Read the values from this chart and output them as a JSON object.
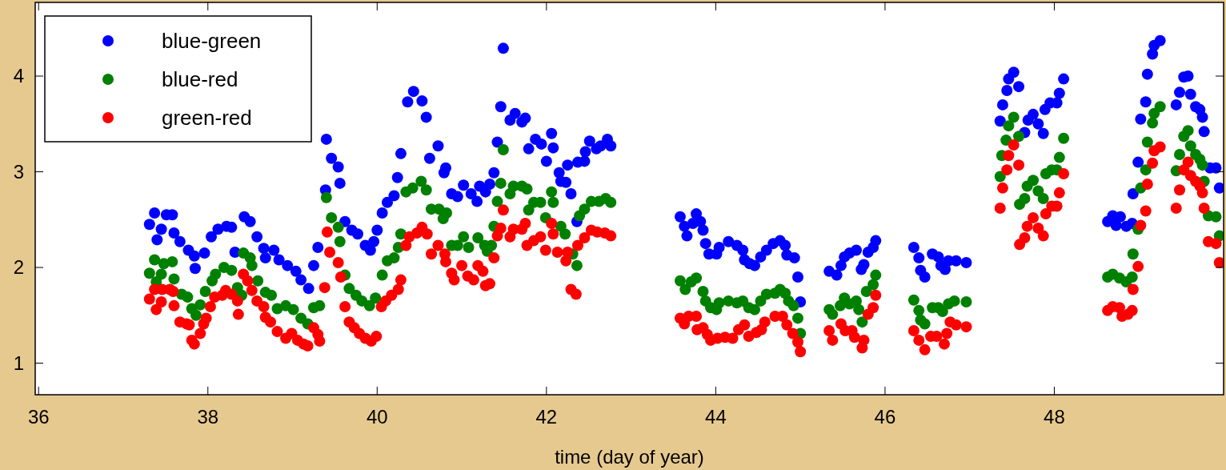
{
  "chart_data": {
    "type": "scatter",
    "xlabel": "time (day of year)",
    "xlim": [
      35.96,
      50
    ],
    "ylim": [
      0.67,
      4.77
    ],
    "xticks": [
      36,
      38,
      40,
      42,
      44,
      46,
      48
    ],
    "yticks": [
      1,
      2,
      3,
      4
    ],
    "legend": "top left",
    "marker": "circle",
    "series": [
      {
        "name": "blue-green",
        "color": "#0000ff",
        "x": [
          37.31,
          37.37,
          37.4,
          37.45,
          37.51,
          37.58,
          37.6,
          37.67,
          37.77,
          37.84,
          37.85,
          37.96,
          38.04,
          38.12,
          38.22,
          38.28,
          38.32,
          38.43,
          38.5,
          38.58,
          38.66,
          38.68,
          38.78,
          38.84,
          38.94,
          39.04,
          39.1,
          39.19,
          39.25,
          39.3,
          39.39,
          39.4,
          39.46,
          39.54,
          39.56,
          39.62,
          39.7,
          39.77,
          39.86,
          39.92,
          39.96,
          40.0,
          40.06,
          40.12,
          40.2,
          40.24,
          40.28,
          40.36,
          40.43,
          40.53,
          40.58,
          40.62,
          40.72,
          40.79,
          40.81,
          40.88,
          40.95,
          41.02,
          41.11,
          41.18,
          41.21,
          41.28,
          41.33,
          41.38,
          41.42,
          41.46,
          41.49,
          41.57,
          41.63,
          41.71,
          41.75,
          41.79,
          41.87,
          41.94,
          42.0,
          42.06,
          42.08,
          42.15,
          42.17,
          42.23,
          42.25,
          42.29,
          42.36,
          42.37,
          42.45,
          42.46,
          42.51,
          42.59,
          42.64,
          42.72,
          42.76,
          43.58,
          43.63,
          43.66,
          43.73,
          43.77,
          43.82,
          43.85,
          43.88,
          43.92,
          44.01,
          44.04,
          44.15,
          44.25,
          44.32,
          44.34,
          44.4,
          44.46,
          44.53,
          44.6,
          44.68,
          44.76,
          44.82,
          44.84,
          44.93,
          44.97,
          45.0,
          45.34,
          45.43,
          45.48,
          45.52,
          45.58,
          45.66,
          45.72,
          45.75,
          45.8,
          45.86,
          45.89,
          46.34,
          46.4,
          46.42,
          46.47,
          46.56,
          46.63,
          46.66,
          46.71,
          46.75,
          46.84,
          46.96,
          47.36,
          47.39,
          47.44,
          47.46,
          47.52,
          47.58,
          47.65,
          47.69,
          47.75,
          47.81,
          47.87,
          47.89,
          47.95,
          48.03,
          48.06,
          48.11,
          48.63,
          48.69,
          48.73,
          48.78,
          48.85,
          48.92,
          48.93,
          48.99,
          49.02,
          49.08,
          49.1,
          49.16,
          49.18,
          49.25,
          49.44,
          49.48,
          49.53,
          49.58,
          49.61,
          49.67,
          49.72,
          49.75,
          49.77,
          49.84,
          49.91,
          49.95
        ],
        "values": [
          2.45,
          2.57,
          2.29,
          2.4,
          2.55,
          2.55,
          2.36,
          2.27,
          2.18,
          2.12,
          1.99,
          2.15,
          2.32,
          2.4,
          2.43,
          2.42,
          2.16,
          2.53,
          2.48,
          2.32,
          2.2,
          2.1,
          2.18,
          2.08,
          2.02,
          1.96,
          1.87,
          1.78,
          2.02,
          2.21,
          2.81,
          3.34,
          3.14,
          3.05,
          2.88,
          2.48,
          2.39,
          2.35,
          2.23,
          2.18,
          2.27,
          2.39,
          2.57,
          2.68,
          2.75,
          2.94,
          3.19,
          3.73,
          3.84,
          3.74,
          3.57,
          3.14,
          3.27,
          2.99,
          3.04,
          2.77,
          2.74,
          2.86,
          2.77,
          2.69,
          2.85,
          2.79,
          2.87,
          2.99,
          3.31,
          3.68,
          4.29,
          3.54,
          3.61,
          3.52,
          3.56,
          3.24,
          3.34,
          3.29,
          3.11,
          3.4,
          3.25,
          2.99,
          2.9,
          2.89,
          3.07,
          2.77,
          2.48,
          3.1,
          3.11,
          3.21,
          3.32,
          3.24,
          3.27,
          3.34,
          3.27,
          2.53,
          2.43,
          2.33,
          2.46,
          2.56,
          2.48,
          2.39,
          2.25,
          2.14,
          2.14,
          2.21,
          2.27,
          2.23,
          2.18,
          2.08,
          2.04,
          2.02,
          2.11,
          2.18,
          2.25,
          2.28,
          2.23,
          2.13,
          2.1,
          1.9,
          1.64,
          1.96,
          1.92,
          2.02,
          2.11,
          2.15,
          2.18,
          1.98,
          2.03,
          2.16,
          2.21,
          2.28,
          2.21,
          2.1,
          1.97,
          1.9,
          2.14,
          2.11,
          2.02,
          1.98,
          2.07,
          2.07,
          2.05,
          3.53,
          3.7,
          3.85,
          3.97,
          4.04,
          3.89,
          3.41,
          3.54,
          3.6,
          3.5,
          3.4,
          3.65,
          3.72,
          3.72,
          3.82,
          3.97,
          2.48,
          2.54,
          2.44,
          2.53,
          2.43,
          2.46,
          2.77,
          3.1,
          3.55,
          3.73,
          4.02,
          4.23,
          4.32,
          4.37,
          3.7,
          3.83,
          3.99,
          4.0,
          3.81,
          3.68,
          3.65,
          3.57,
          3.42,
          3.04,
          3.04,
          2.83
        ]
      },
      {
        "name": "blue-red",
        "color": "#008000",
        "x": [
          37.31,
          37.37,
          37.39,
          37.45,
          37.48,
          37.58,
          37.6,
          37.69,
          37.76,
          37.81,
          37.86,
          37.91,
          37.97,
          38.05,
          38.09,
          38.19,
          38.28,
          38.35,
          38.4,
          38.42,
          38.5,
          38.52,
          38.59,
          38.68,
          38.75,
          38.82,
          38.92,
          39.01,
          39.1,
          39.18,
          39.25,
          39.32,
          39.4,
          39.46,
          39.54,
          39.56,
          39.62,
          39.67,
          39.75,
          39.82,
          39.91,
          39.98,
          40.06,
          40.12,
          40.2,
          40.25,
          40.28,
          40.34,
          40.42,
          40.52,
          40.58,
          40.64,
          40.73,
          40.78,
          40.82,
          40.88,
          40.95,
          41.02,
          41.08,
          41.19,
          41.27,
          41.3,
          41.35,
          41.38,
          41.42,
          41.46,
          41.49,
          41.57,
          41.61,
          41.71,
          41.77,
          41.79,
          41.85,
          41.93,
          41.99,
          42.06,
          42.08,
          42.17,
          42.22,
          42.31,
          42.36,
          42.39,
          42.45,
          42.53,
          42.62,
          42.7,
          42.76,
          43.58,
          43.64,
          43.71,
          43.77,
          43.85,
          43.88,
          43.94,
          44.01,
          44.04,
          44.15,
          44.25,
          44.32,
          44.39,
          44.46,
          44.53,
          44.6,
          44.7,
          44.76,
          44.82,
          44.86,
          44.92,
          44.97,
          45.0,
          45.34,
          45.38,
          45.47,
          45.52,
          45.58,
          45.66,
          45.69,
          45.73,
          45.78,
          45.86,
          45.89,
          46.34,
          46.4,
          46.42,
          46.47,
          46.56,
          46.63,
          46.68,
          46.75,
          46.82,
          46.96,
          47.36,
          47.38,
          47.43,
          47.46,
          47.52,
          47.58,
          47.59,
          47.65,
          47.68,
          47.75,
          47.81,
          47.87,
          47.9,
          47.97,
          48.03,
          48.06,
          48.11,
          48.63,
          48.69,
          48.77,
          48.85,
          48.92,
          48.93,
          48.99,
          49.02,
          49.08,
          49.1,
          49.16,
          49.18,
          49.25,
          49.44,
          49.48,
          49.53,
          49.58,
          49.61,
          49.67,
          49.72,
          49.75,
          49.77,
          49.82,
          49.91,
          49.95
        ],
        "values": [
          1.94,
          2.08,
          1.85,
          1.93,
          2.04,
          2.06,
          1.88,
          1.72,
          1.69,
          1.57,
          1.5,
          1.61,
          1.75,
          1.86,
          1.93,
          2.0,
          1.97,
          1.79,
          1.71,
          2.15,
          2.1,
          2.02,
          1.86,
          1.74,
          1.71,
          1.57,
          1.6,
          1.56,
          1.47,
          1.41,
          1.58,
          1.6,
          2.73,
          2.52,
          2.42,
          2.27,
          1.92,
          1.78,
          1.71,
          1.65,
          1.6,
          1.68,
          1.92,
          2.07,
          2.1,
          2.21,
          2.35,
          2.79,
          2.83,
          2.9,
          2.81,
          2.61,
          2.61,
          2.51,
          2.57,
          2.23,
          2.23,
          2.32,
          2.21,
          2.31,
          2.23,
          2.17,
          2.23,
          2.43,
          2.69,
          2.88,
          3.23,
          2.77,
          2.85,
          2.85,
          2.82,
          2.6,
          2.68,
          2.68,
          2.52,
          2.79,
          2.68,
          2.43,
          2.35,
          2.14,
          2.02,
          2.54,
          2.61,
          2.69,
          2.69,
          2.72,
          2.68,
          1.86,
          1.77,
          1.85,
          1.89,
          1.75,
          1.65,
          1.58,
          1.56,
          1.63,
          1.65,
          1.63,
          1.65,
          1.58,
          1.56,
          1.65,
          1.72,
          1.73,
          1.77,
          1.73,
          1.65,
          1.6,
          1.47,
          1.31,
          1.56,
          1.51,
          1.6,
          1.68,
          1.62,
          1.65,
          1.56,
          1.43,
          1.75,
          1.82,
          1.92,
          1.66,
          1.55,
          1.45,
          1.41,
          1.58,
          1.58,
          1.54,
          1.62,
          1.65,
          1.64,
          2.95,
          3.17,
          3.33,
          3.48,
          3.57,
          3.37,
          2.66,
          2.72,
          2.85,
          2.91,
          2.8,
          2.72,
          2.98,
          3.02,
          3.02,
          3.15,
          3.35,
          1.9,
          1.93,
          1.89,
          1.85,
          1.9,
          2.14,
          2.4,
          2.83,
          3.02,
          3.31,
          3.51,
          3.61,
          3.68,
          3.01,
          3.18,
          3.37,
          3.43,
          3.27,
          3.18,
          3.13,
          3.07,
          2.9,
          2.54,
          2.53,
          2.33
        ]
      },
      {
        "name": "green-red",
        "color": "#ff0000",
        "x": [
          37.31,
          37.37,
          37.39,
          37.45,
          37.46,
          37.55,
          37.59,
          37.6,
          37.67,
          37.75,
          37.78,
          37.81,
          37.84,
          37.91,
          37.95,
          37.98,
          38.03,
          38.08,
          38.17,
          38.21,
          38.28,
          38.35,
          38.36,
          38.42,
          38.47,
          38.52,
          38.58,
          38.66,
          38.68,
          38.74,
          38.82,
          38.92,
          38.99,
          39.06,
          39.13,
          39.18,
          39.25,
          39.3,
          39.32,
          39.38,
          39.41,
          39.44,
          39.54,
          39.57,
          39.62,
          39.67,
          39.73,
          39.79,
          39.86,
          39.93,
          39.99,
          40.05,
          40.1,
          40.17,
          40.25,
          40.28,
          40.34,
          40.38,
          40.47,
          40.53,
          40.59,
          40.64,
          40.72,
          40.8,
          40.81,
          40.88,
          40.91,
          41.0,
          41.07,
          41.14,
          41.19,
          41.25,
          41.28,
          41.33,
          41.38,
          41.42,
          41.46,
          41.49,
          41.57,
          41.61,
          41.71,
          41.75,
          41.77,
          41.85,
          41.93,
          41.99,
          42.06,
          42.08,
          42.13,
          42.23,
          42.25,
          42.29,
          42.35,
          42.37,
          42.45,
          42.53,
          42.6,
          42.69,
          42.76,
          43.58,
          43.63,
          43.68,
          43.77,
          43.78,
          43.85,
          43.9,
          43.94,
          44.02,
          44.11,
          44.2,
          44.27,
          44.34,
          44.39,
          44.48,
          44.54,
          44.58,
          44.7,
          44.79,
          44.84,
          44.91,
          44.97,
          45.0,
          45.34,
          45.38,
          45.48,
          45.53,
          45.61,
          45.64,
          45.73,
          45.75,
          45.8,
          45.86,
          45.89,
          46.34,
          46.4,
          46.47,
          46.54,
          46.61,
          46.7,
          46.73,
          46.77,
          46.84,
          46.96,
          47.36,
          47.39,
          47.44,
          47.46,
          47.52,
          47.58,
          47.59,
          47.65,
          47.68,
          47.75,
          47.81,
          47.87,
          47.9,
          47.97,
          48.03,
          48.06,
          48.11,
          48.63,
          48.69,
          48.77,
          48.8,
          48.87,
          48.92,
          48.93,
          48.99,
          49.02,
          49.08,
          49.1,
          49.16,
          49.18,
          49.25,
          49.44,
          49.48,
          49.53,
          49.58,
          49.61,
          49.67,
          49.72,
          49.75,
          49.77,
          49.82,
          49.91,
          49.95
        ],
        "values": [
          1.67,
          1.77,
          1.56,
          1.64,
          1.77,
          1.77,
          1.75,
          1.6,
          1.43,
          1.41,
          1.4,
          1.24,
          1.2,
          1.31,
          1.41,
          1.47,
          1.59,
          1.69,
          1.71,
          1.76,
          1.72,
          1.65,
          1.51,
          1.93,
          1.86,
          1.76,
          1.65,
          1.59,
          1.48,
          1.43,
          1.33,
          1.26,
          1.31,
          1.24,
          1.2,
          1.18,
          1.37,
          1.3,
          1.23,
          1.79,
          2.37,
          2.16,
          2.05,
          1.9,
          1.59,
          1.43,
          1.37,
          1.31,
          1.26,
          1.23,
          1.28,
          1.59,
          1.65,
          1.71,
          1.77,
          1.87,
          2.23,
          2.32,
          2.36,
          2.42,
          2.35,
          2.14,
          2.23,
          2.14,
          2.06,
          1.94,
          1.87,
          2.02,
          1.91,
          1.87,
          2.02,
          1.96,
          1.81,
          1.83,
          2.1,
          2.33,
          2.41,
          2.6,
          2.32,
          2.4,
          2.4,
          2.46,
          2.23,
          2.28,
          2.32,
          2.18,
          2.46,
          2.35,
          2.16,
          2.07,
          2.16,
          1.77,
          1.72,
          2.23,
          2.31,
          2.39,
          2.37,
          2.36,
          2.33,
          1.47,
          1.41,
          1.49,
          1.49,
          1.35,
          1.37,
          1.3,
          1.24,
          1.26,
          1.27,
          1.26,
          1.35,
          1.4,
          1.28,
          1.32,
          1.35,
          1.43,
          1.49,
          1.49,
          1.4,
          1.31,
          1.22,
          1.12,
          1.34,
          1.24,
          1.41,
          1.34,
          1.34,
          1.27,
          1.16,
          1.24,
          1.51,
          1.58,
          1.71,
          1.34,
          1.24,
          1.14,
          1.28,
          1.28,
          1.2,
          1.31,
          1.43,
          1.4,
          1.38,
          2.62,
          2.83,
          3.02,
          3.17,
          3.28,
          3.07,
          2.24,
          2.31,
          2.43,
          2.52,
          2.41,
          2.33,
          2.56,
          2.64,
          2.64,
          2.78,
          2.98,
          1.55,
          1.59,
          1.58,
          1.49,
          1.51,
          1.55,
          1.77,
          2.01,
          2.44,
          2.59,
          2.87,
          3.09,
          3.22,
          3.26,
          2.62,
          2.81,
          3.02,
          3.1,
          2.96,
          2.9,
          2.85,
          2.78,
          2.62,
          2.27,
          2.25,
          2.05
        ]
      }
    ]
  }
}
